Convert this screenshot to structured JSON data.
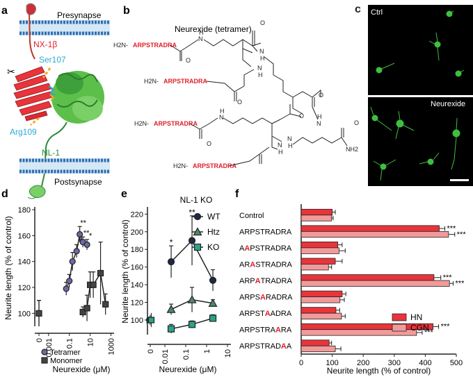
{
  "panels": {
    "a": {
      "letter": "a",
      "presynapse": "Presynapse",
      "postsynapse": "Postsynapse",
      "nx": "NX-1β",
      "ser": "Ser107",
      "arg": "Arg109",
      "nl": "NL-1",
      "scissors": "✂"
    },
    "b": {
      "letter": "b",
      "title": "Neurexide (tetramer)",
      "peptide": "ARPSTRADRA",
      "h2n": "H2N-",
      "o": "O",
      "nh": "N",
      "h": "H",
      "nh2": "NH2"
    },
    "c": {
      "letter": "c",
      "ctrl": "Ctrl",
      "neurexide": "Neurexide"
    },
    "d": {
      "letter": "d"
    },
    "e": {
      "letter": "e"
    },
    "f": {
      "letter": "f"
    }
  },
  "colors": {
    "tetramer": "#6a6aa8",
    "monomer": "#444444",
    "hn": "#e8343a",
    "cgn": "#f29a9a",
    "wt": "#1e2a44",
    "htz": "#4a8a6a",
    "ko": "#2aa38a",
    "green_cell": "#3fbf3f",
    "red_text": "#e0202a",
    "cyan_text": "#2aa9d8"
  },
  "chart_data": [
    {
      "panel": "d",
      "type": "scatter",
      "xlabel": "Neurexide (μM)",
      "ylabel": "Neurite length (% of control)",
      "x_ticks": [
        "0",
        "0.001",
        "0.1",
        "10",
        "1000"
      ],
      "y_ticks": [
        100,
        120,
        140,
        160,
        180
      ],
      "ylim": [
        90,
        180
      ],
      "x_scale": "log",
      "xlim": [
        0.0003,
        2000
      ],
      "series": [
        {
          "name": "Tetramer",
          "marker": "circle",
          "x": [
            0,
            0.05,
            0.1,
            0.2,
            0.5,
            1,
            2,
            5
          ],
          "y": [
            100,
            119,
            125,
            140,
            148,
            161,
            155,
            153
          ],
          "err": [
            10,
            5,
            5,
            7,
            5,
            6,
            4,
            4
          ],
          "significance": [
            "",
            "",
            "",
            "",
            "*",
            "**",
            "**",
            "*"
          ]
        },
        {
          "name": "Monomer",
          "marker": "square",
          "x": [
            0,
            2,
            5,
            10,
            20,
            100,
            300
          ],
          "y": [
            100,
            101,
            104,
            122,
            122,
            131,
            107
          ],
          "err": [
            10,
            4,
            10,
            10,
            10,
            24,
            8
          ],
          "significance": [
            "",
            "",
            "",
            "",
            "",
            "",
            ""
          ]
        }
      ]
    },
    {
      "panel": "e",
      "type": "line",
      "title": "NL-1 KO",
      "xlabel": "Neurexide (μM)",
      "ylabel": "Neurite length (% of control)",
      "x_ticks": [
        "0",
        "0.01",
        "0.1",
        "1",
        "10"
      ],
      "y_ticks": [
        100,
        120,
        140,
        160,
        180,
        200,
        220
      ],
      "ylim": [
        85,
        225
      ],
      "x_scale": "log",
      "xlim": [
        0.005,
        10
      ],
      "series": [
        {
          "name": "WT",
          "marker": "circle",
          "x": [
            0.02,
            0.2,
            2
          ],
          "y": [
            166,
            190,
            145
          ],
          "err": [
            18,
            28,
            12
          ],
          "significance": [
            "*",
            "**",
            ""
          ]
        },
        {
          "name": "Htz",
          "marker": "triangle",
          "x": [
            0.02,
            0.2,
            2
          ],
          "y": [
            112,
            123,
            119
          ],
          "err": [
            6,
            14,
            4
          ],
          "significance": [
            "",
            "",
            ""
          ]
        },
        {
          "name": "KO",
          "marker": "square",
          "x": [
            0.02,
            0.2,
            2
          ],
          "y": [
            90,
            95,
            102
          ],
          "err": [
            5,
            4,
            4
          ],
          "significance": [
            "",
            "",
            ""
          ]
        }
      ],
      "baseline": [
        {
          "x": 0,
          "y": 100,
          "marker": "circle",
          "err": 4
        },
        {
          "x": 0,
          "y": 100,
          "marker": "triangle",
          "err": 6
        },
        {
          "x": 0,
          "y": 100,
          "marker": "square",
          "err": 8
        }
      ]
    },
    {
      "panel": "f",
      "type": "bar",
      "orientation": "horizontal",
      "xlabel": "Neurite length (% of control)",
      "x_ticks": [
        0,
        100,
        200,
        300,
        400,
        500
      ],
      "xlim": [
        0,
        500
      ],
      "categories": [
        {
          "pre": "Control",
          "mut": "",
          "post": ""
        },
        {
          "pre": "ARPSTRADRA",
          "mut": "",
          "post": ""
        },
        {
          "pre": "A",
          "mut": "A",
          "post": "PSTRADRA"
        },
        {
          "pre": "AR",
          "mut": "A",
          "post": "STRADRA"
        },
        {
          "pre": "ARP",
          "mut": "A",
          "post": "TRADRA"
        },
        {
          "pre": "ARPS",
          "mut": "A",
          "post": "RADRA"
        },
        {
          "pre": "ARPST",
          "mut": "A",
          "post": "ADRA"
        },
        {
          "pre": "ARPSTRA",
          "mut": "A",
          "post": "RA"
        },
        {
          "pre": "ARPSTRAD",
          "mut": "A",
          "post": "A"
        }
      ],
      "series": [
        {
          "name": "HN",
          "values": [
            100,
            445,
            118,
            110,
            428,
            132,
            112,
            425,
            90
          ],
          "err": [
            10,
            18,
            14,
            22,
            22,
            12,
            12,
            18,
            8
          ],
          "significance": [
            "",
            "***",
            "",
            "",
            "***",
            "",
            "",
            "***",
            ""
          ]
        },
        {
          "name": "CGN",
          "values": [
            98,
            475,
            122,
            88,
            478,
            125,
            130,
            372,
            110
          ],
          "err": [
            5,
            20,
            20,
            10,
            12,
            14,
            12,
            18,
            18
          ],
          "significance": [
            "",
            "***",
            "",
            "",
            "***",
            "",
            "",
            "***",
            ""
          ]
        }
      ]
    }
  ]
}
